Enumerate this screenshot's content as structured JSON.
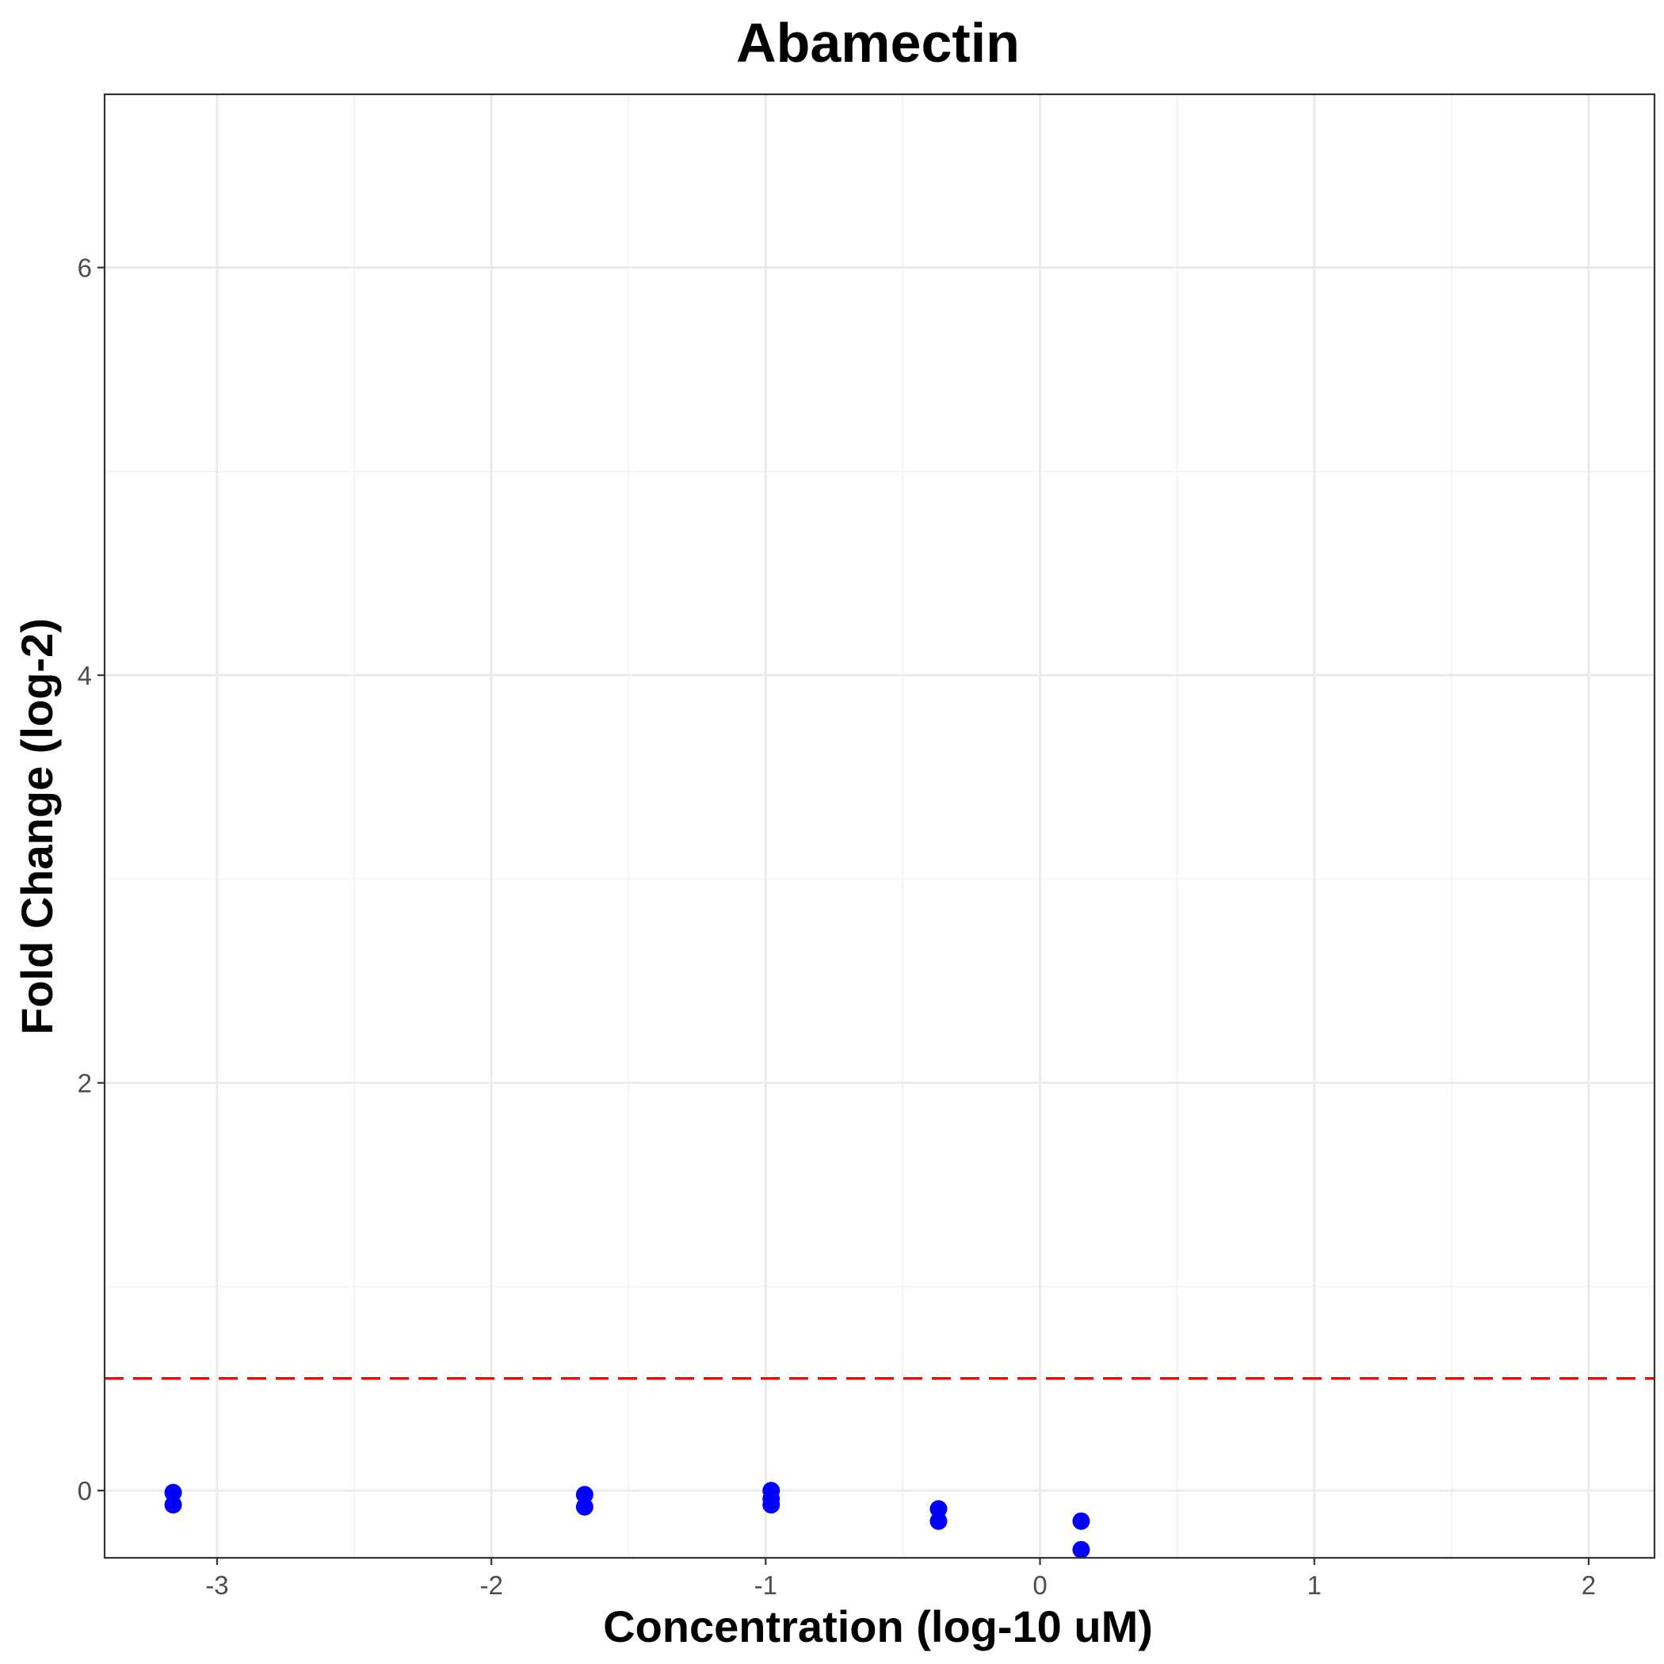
{
  "chart_data": {
    "type": "scatter",
    "title": "Abamectin",
    "xlabel": "Concentration (log-10 uM)",
    "ylabel": "Fold Change (log-2)",
    "xlim": [
      -3.41,
      2.24
    ],
    "ylim": [
      -0.33,
      6.85
    ],
    "x_ticks": [
      -3,
      -2,
      -1,
      0,
      1,
      2
    ],
    "x_tick_labels": [
      "-3",
      "-2",
      "-1",
      "0",
      "1",
      "2"
    ],
    "y_ticks": [
      0,
      2,
      4,
      6
    ],
    "y_tick_labels": [
      "0",
      "2",
      "4",
      "6"
    ],
    "grid": true,
    "point_color": "#0000ff",
    "threshold": {
      "y": 0.55,
      "color": "#ff0000",
      "style": "dashed"
    },
    "points": [
      {
        "x": -3.16,
        "y": -0.01
      },
      {
        "x": -3.16,
        "y": -0.07
      },
      {
        "x": -1.66,
        "y": -0.02
      },
      {
        "x": -1.66,
        "y": -0.08
      },
      {
        "x": -0.98,
        "y": 0.0
      },
      {
        "x": -0.98,
        "y": -0.04
      },
      {
        "x": -0.98,
        "y": -0.07
      },
      {
        "x": -0.37,
        "y": -0.09
      },
      {
        "x": -0.37,
        "y": -0.15
      },
      {
        "x": 0.15,
        "y": -0.15
      },
      {
        "x": 0.15,
        "y": -0.29
      }
    ]
  }
}
